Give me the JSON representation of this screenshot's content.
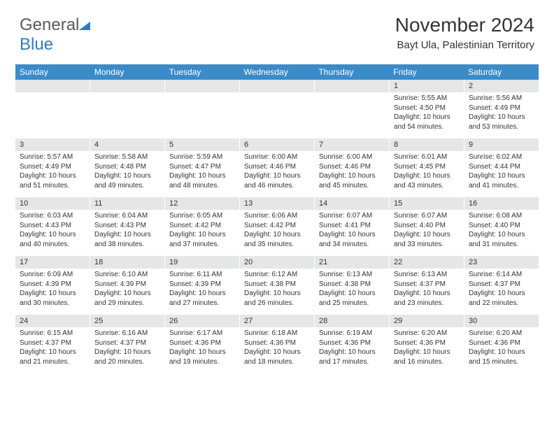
{
  "logo": {
    "text1": "General",
    "text2": "Blue",
    "color_gray": "#5a5a5a",
    "color_blue": "#2f7bbf"
  },
  "header": {
    "title": "November 2024",
    "location": "Bayt Ula, Palestinian Territory"
  },
  "colors": {
    "header_bg": "#3b8bc9",
    "header_text": "#ffffff",
    "date_band_bg": "#e4e6e8",
    "body_text": "#333333"
  },
  "day_names": [
    "Sunday",
    "Monday",
    "Tuesday",
    "Wednesday",
    "Thursday",
    "Friday",
    "Saturday"
  ],
  "weeks": [
    [
      {
        "date": "",
        "sunrise": "",
        "sunset": "",
        "daylight": ""
      },
      {
        "date": "",
        "sunrise": "",
        "sunset": "",
        "daylight": ""
      },
      {
        "date": "",
        "sunrise": "",
        "sunset": "",
        "daylight": ""
      },
      {
        "date": "",
        "sunrise": "",
        "sunset": "",
        "daylight": ""
      },
      {
        "date": "",
        "sunrise": "",
        "sunset": "",
        "daylight": ""
      },
      {
        "date": "1",
        "sunrise": "Sunrise: 5:55 AM",
        "sunset": "Sunset: 4:50 PM",
        "daylight": "Daylight: 10 hours and 54 minutes."
      },
      {
        "date": "2",
        "sunrise": "Sunrise: 5:56 AM",
        "sunset": "Sunset: 4:49 PM",
        "daylight": "Daylight: 10 hours and 53 minutes."
      }
    ],
    [
      {
        "date": "3",
        "sunrise": "Sunrise: 5:57 AM",
        "sunset": "Sunset: 4:49 PM",
        "daylight": "Daylight: 10 hours and 51 minutes."
      },
      {
        "date": "4",
        "sunrise": "Sunrise: 5:58 AM",
        "sunset": "Sunset: 4:48 PM",
        "daylight": "Daylight: 10 hours and 49 minutes."
      },
      {
        "date": "5",
        "sunrise": "Sunrise: 5:59 AM",
        "sunset": "Sunset: 4:47 PM",
        "daylight": "Daylight: 10 hours and 48 minutes."
      },
      {
        "date": "6",
        "sunrise": "Sunrise: 6:00 AM",
        "sunset": "Sunset: 4:46 PM",
        "daylight": "Daylight: 10 hours and 46 minutes."
      },
      {
        "date": "7",
        "sunrise": "Sunrise: 6:00 AM",
        "sunset": "Sunset: 4:46 PM",
        "daylight": "Daylight: 10 hours and 45 minutes."
      },
      {
        "date": "8",
        "sunrise": "Sunrise: 6:01 AM",
        "sunset": "Sunset: 4:45 PM",
        "daylight": "Daylight: 10 hours and 43 minutes."
      },
      {
        "date": "9",
        "sunrise": "Sunrise: 6:02 AM",
        "sunset": "Sunset: 4:44 PM",
        "daylight": "Daylight: 10 hours and 41 minutes."
      }
    ],
    [
      {
        "date": "10",
        "sunrise": "Sunrise: 6:03 AM",
        "sunset": "Sunset: 4:43 PM",
        "daylight": "Daylight: 10 hours and 40 minutes."
      },
      {
        "date": "11",
        "sunrise": "Sunrise: 6:04 AM",
        "sunset": "Sunset: 4:43 PM",
        "daylight": "Daylight: 10 hours and 38 minutes."
      },
      {
        "date": "12",
        "sunrise": "Sunrise: 6:05 AM",
        "sunset": "Sunset: 4:42 PM",
        "daylight": "Daylight: 10 hours and 37 minutes."
      },
      {
        "date": "13",
        "sunrise": "Sunrise: 6:06 AM",
        "sunset": "Sunset: 4:42 PM",
        "daylight": "Daylight: 10 hours and 35 minutes."
      },
      {
        "date": "14",
        "sunrise": "Sunrise: 6:07 AM",
        "sunset": "Sunset: 4:41 PM",
        "daylight": "Daylight: 10 hours and 34 minutes."
      },
      {
        "date": "15",
        "sunrise": "Sunrise: 6:07 AM",
        "sunset": "Sunset: 4:40 PM",
        "daylight": "Daylight: 10 hours and 33 minutes."
      },
      {
        "date": "16",
        "sunrise": "Sunrise: 6:08 AM",
        "sunset": "Sunset: 4:40 PM",
        "daylight": "Daylight: 10 hours and 31 minutes."
      }
    ],
    [
      {
        "date": "17",
        "sunrise": "Sunrise: 6:09 AM",
        "sunset": "Sunset: 4:39 PM",
        "daylight": "Daylight: 10 hours and 30 minutes."
      },
      {
        "date": "18",
        "sunrise": "Sunrise: 6:10 AM",
        "sunset": "Sunset: 4:39 PM",
        "daylight": "Daylight: 10 hours and 29 minutes."
      },
      {
        "date": "19",
        "sunrise": "Sunrise: 6:11 AM",
        "sunset": "Sunset: 4:39 PM",
        "daylight": "Daylight: 10 hours and 27 minutes."
      },
      {
        "date": "20",
        "sunrise": "Sunrise: 6:12 AM",
        "sunset": "Sunset: 4:38 PM",
        "daylight": "Daylight: 10 hours and 26 minutes."
      },
      {
        "date": "21",
        "sunrise": "Sunrise: 6:13 AM",
        "sunset": "Sunset: 4:38 PM",
        "daylight": "Daylight: 10 hours and 25 minutes."
      },
      {
        "date": "22",
        "sunrise": "Sunrise: 6:13 AM",
        "sunset": "Sunset: 4:37 PM",
        "daylight": "Daylight: 10 hours and 23 minutes."
      },
      {
        "date": "23",
        "sunrise": "Sunrise: 6:14 AM",
        "sunset": "Sunset: 4:37 PM",
        "daylight": "Daylight: 10 hours and 22 minutes."
      }
    ],
    [
      {
        "date": "24",
        "sunrise": "Sunrise: 6:15 AM",
        "sunset": "Sunset: 4:37 PM",
        "daylight": "Daylight: 10 hours and 21 minutes."
      },
      {
        "date": "25",
        "sunrise": "Sunrise: 6:16 AM",
        "sunset": "Sunset: 4:37 PM",
        "daylight": "Daylight: 10 hours and 20 minutes."
      },
      {
        "date": "26",
        "sunrise": "Sunrise: 6:17 AM",
        "sunset": "Sunset: 4:36 PM",
        "daylight": "Daylight: 10 hours and 19 minutes."
      },
      {
        "date": "27",
        "sunrise": "Sunrise: 6:18 AM",
        "sunset": "Sunset: 4:36 PM",
        "daylight": "Daylight: 10 hours and 18 minutes."
      },
      {
        "date": "28",
        "sunrise": "Sunrise: 6:19 AM",
        "sunset": "Sunset: 4:36 PM",
        "daylight": "Daylight: 10 hours and 17 minutes."
      },
      {
        "date": "29",
        "sunrise": "Sunrise: 6:20 AM",
        "sunset": "Sunset: 4:36 PM",
        "daylight": "Daylight: 10 hours and 16 minutes."
      },
      {
        "date": "30",
        "sunrise": "Sunrise: 6:20 AM",
        "sunset": "Sunset: 4:36 PM",
        "daylight": "Daylight: 10 hours and 15 minutes."
      }
    ]
  ]
}
